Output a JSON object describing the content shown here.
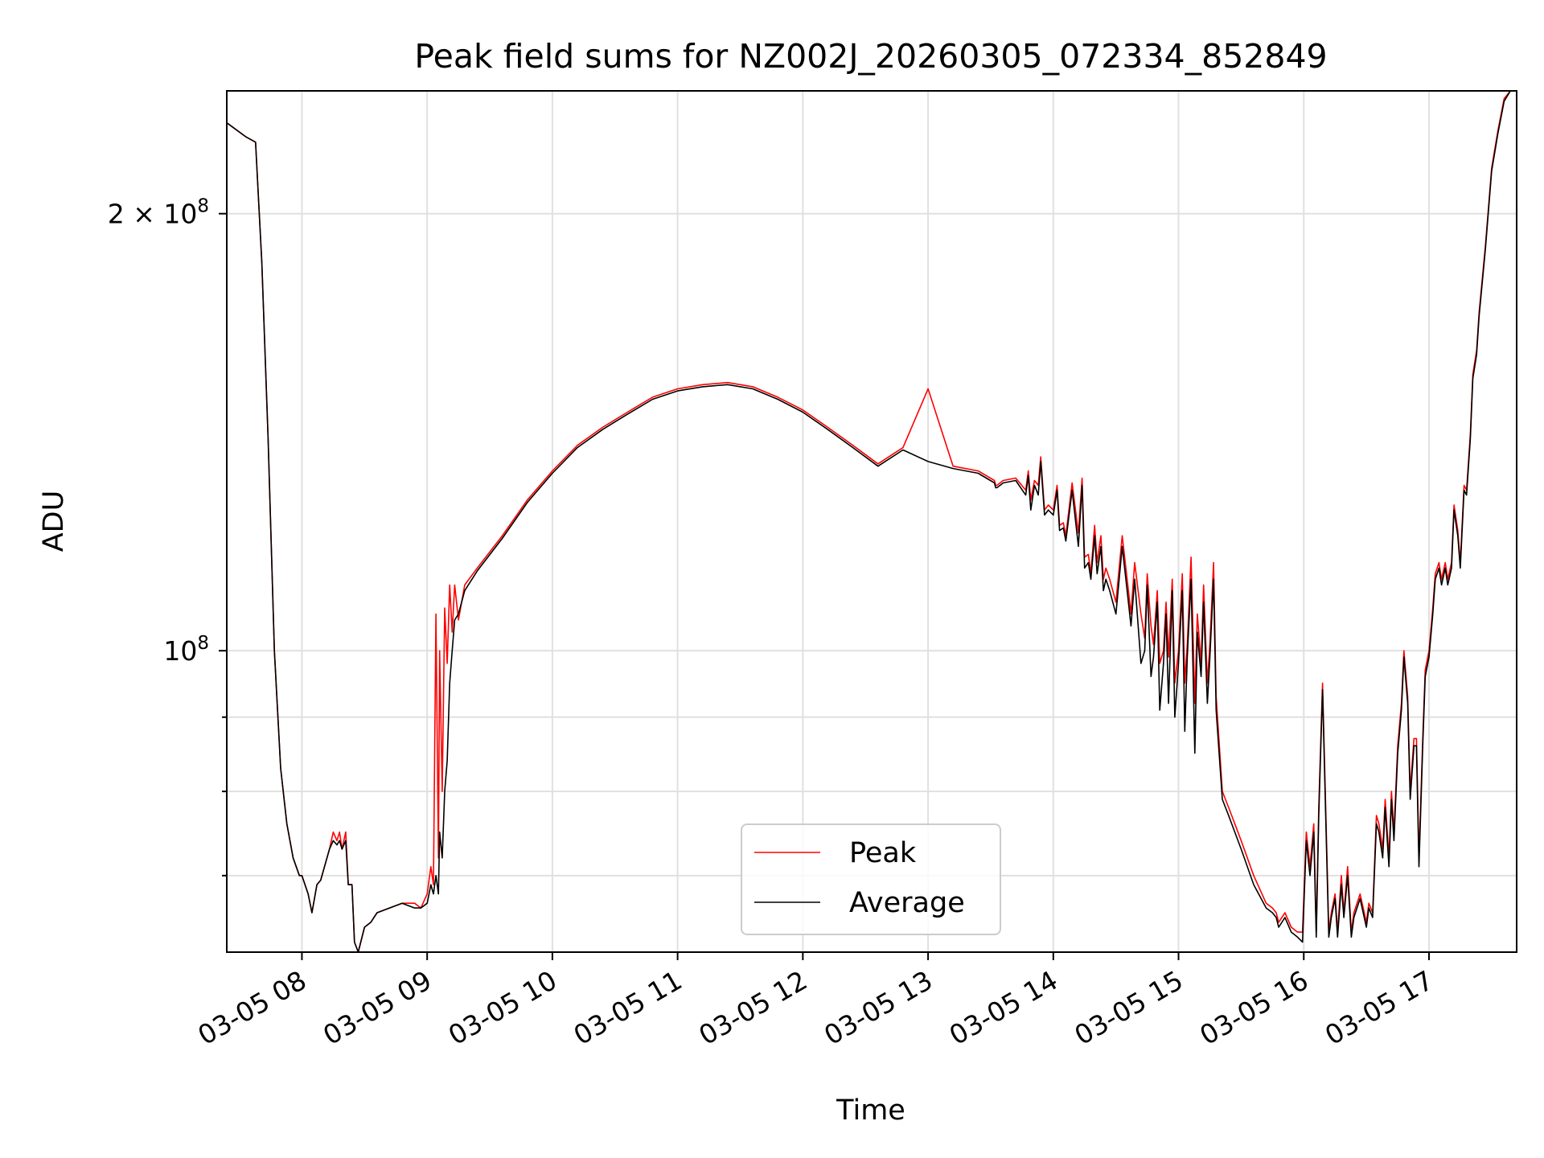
{
  "chart_data": {
    "type": "line",
    "title": "Peak field sums for NZ002J_20260305_072334_852849",
    "xlabel": "Time",
    "ylabel": "ADU",
    "yscale": "log",
    "grid": true,
    "legend_position": "lower-center",
    "x_unit": "hours since 03-05 00:00",
    "xlim": [
      7.4,
      17.7
    ],
    "ylim": [
      62000000,
      243000000
    ],
    "x_ticks": [
      {
        "value": 8,
        "label": "03-05 08"
      },
      {
        "value": 9,
        "label": "03-05 09"
      },
      {
        "value": 10,
        "label": "03-05 10"
      },
      {
        "value": 11,
        "label": "03-05 11"
      },
      {
        "value": 12,
        "label": "03-05 12"
      },
      {
        "value": 13,
        "label": "03-05 13"
      },
      {
        "value": 14,
        "label": "03-05 14"
      },
      {
        "value": 15,
        "label": "03-05 15"
      },
      {
        "value": 16,
        "label": "03-05 16"
      },
      {
        "value": 17,
        "label": "03-05 17"
      }
    ],
    "y_major_ticks": [
      {
        "value": 100000000,
        "base": "10",
        "exp": "8",
        "mant": ""
      },
      {
        "value": 200000000,
        "base": "10",
        "exp": "8",
        "mant": "2 × "
      }
    ],
    "y_minor_ticks": [
      70000000,
      80000000,
      90000000
    ],
    "series": [
      {
        "name": "Peak",
        "color": "#ff0000",
        "x": [
          7.4,
          7.55,
          7.63,
          7.68,
          7.73,
          7.78,
          7.83,
          7.88,
          7.93,
          7.98,
          8.0,
          8.05,
          8.08,
          8.12,
          8.15,
          8.2,
          8.22,
          8.25,
          8.28,
          8.3,
          8.32,
          8.35,
          8.37,
          8.4,
          8.42,
          8.45,
          8.47,
          8.5,
          8.55,
          8.6,
          8.7,
          8.8,
          8.9,
          8.95,
          9.0,
          9.03,
          9.05,
          9.07,
          9.09,
          9.1,
          9.12,
          9.14,
          9.16,
          9.18,
          9.2,
          9.22,
          9.25,
          9.3,
          9.4,
          9.6,
          9.8,
          10.0,
          10.2,
          10.4,
          10.6,
          10.8,
          11.0,
          11.2,
          11.4,
          11.6,
          11.8,
          12.0,
          12.2,
          12.4,
          12.6,
          12.8,
          13.0,
          13.2,
          13.4,
          13.53,
          13.54,
          13.55,
          13.6,
          13.7,
          13.78,
          13.8,
          13.82,
          13.85,
          13.88,
          13.9,
          13.93,
          13.96,
          14.0,
          14.03,
          14.05,
          14.08,
          14.1,
          14.15,
          14.2,
          14.23,
          14.25,
          14.28,
          14.3,
          14.33,
          14.35,
          14.38,
          14.4,
          14.42,
          14.45,
          14.5,
          14.55,
          14.6,
          14.62,
          14.65,
          14.7,
          14.73,
          14.75,
          14.78,
          14.8,
          14.83,
          14.85,
          14.88,
          14.9,
          14.92,
          14.95,
          14.97,
          15.0,
          15.03,
          15.05,
          15.07,
          15.1,
          15.13,
          15.15,
          15.18,
          15.2,
          15.23,
          15.25,
          15.28,
          15.3,
          15.35,
          15.4,
          15.5,
          15.6,
          15.7,
          15.75,
          15.78,
          15.8,
          15.85,
          15.9,
          15.95,
          15.99,
          16.02,
          16.05,
          16.08,
          16.1,
          16.12,
          16.15,
          16.18,
          16.2,
          16.22,
          16.25,
          16.27,
          16.3,
          16.32,
          16.35,
          16.38,
          16.4,
          16.45,
          16.5,
          16.52,
          16.55,
          16.58,
          16.6,
          16.63,
          16.65,
          16.68,
          16.7,
          16.72,
          16.75,
          16.78,
          16.8,
          16.83,
          16.85,
          16.88,
          16.9,
          16.92,
          16.95,
          16.97,
          17.0,
          17.03,
          17.05,
          17.08,
          17.1,
          17.13,
          17.15,
          17.18,
          17.2,
          17.23,
          17.25,
          17.28,
          17.3,
          17.33,
          17.35,
          17.38,
          17.4,
          17.45,
          17.5,
          17.55,
          17.6,
          17.65,
          17.7
        ],
        "y": [
          231000000,
          226000000,
          224000000,
          185000000,
          140000000,
          100000000,
          83000000,
          76000000,
          72000000,
          70000000,
          70000000,
          68000000,
          66000000,
          69000000,
          69500000,
          72000000,
          73000000,
          75000000,
          74000000,
          75000000,
          73000000,
          75000000,
          69000000,
          69000000,
          63000000,
          62000000,
          63000000,
          64500000,
          65000000,
          66000000,
          66500000,
          67000000,
          67000000,
          66500000,
          68000000,
          71000000,
          69000000,
          106000000,
          72000000,
          100000000,
          80000000,
          107000000,
          98000000,
          111000000,
          103000000,
          111000000,
          105000000,
          111000000,
          114000000,
          120000000,
          127000000,
          133000000,
          138500000,
          142500000,
          146000000,
          149500000,
          151500000,
          152500000,
          153000000,
          152000000,
          149500000,
          146500000,
          142500000,
          138500000,
          134500000,
          138000000,
          151500000,
          134000000,
          133000000,
          131000000,
          130000000,
          130000000,
          131000000,
          131500000,
          129000000,
          133000000,
          127000000,
          131000000,
          130000000,
          136000000,
          125000000,
          126000000,
          125000000,
          130000000,
          122000000,
          122500000,
          120000000,
          130500000,
          120500000,
          131500000,
          116000000,
          116500000,
          113000000,
          122000000,
          115000000,
          120000000,
          112000000,
          114000000,
          112000000,
          108000000,
          120000000,
          110000000,
          106000000,
          115000000,
          106000000,
          102000000,
          113000000,
          104000000,
          101000000,
          110000000,
          98000000,
          100000000,
          108000000,
          99000000,
          112000000,
          95000000,
          100000000,
          113000000,
          95000000,
          101000000,
          116000000,
          92000000,
          106000000,
          98000000,
          111000000,
          95000000,
          101000000,
          115000000,
          93000000,
          80000000,
          78000000,
          74000000,
          70000000,
          67000000,
          66500000,
          66000000,
          65000000,
          66000000,
          64500000,
          64000000,
          64000000,
          75000000,
          71000000,
          76000000,
          64000000,
          78000000,
          95000000,
          75000000,
          64000000,
          66000000,
          68000000,
          64000000,
          70000000,
          66000000,
          71000000,
          64000000,
          66000000,
          68000000,
          65000000,
          67000000,
          66000000,
          77000000,
          76000000,
          73000000,
          79000000,
          72000000,
          80000000,
          75000000,
          86000000,
          92000000,
          100000000,
          93000000,
          80000000,
          87000000,
          87000000,
          72000000,
          87000000,
          97000000,
          100000000,
          107000000,
          113000000,
          115000000,
          112000000,
          115000000,
          112000000,
          115000000,
          126000000,
          121000000,
          115000000,
          130000000,
          129000000,
          141000000,
          155000000,
          161000000,
          171000000,
          190000000,
          215000000,
          228000000,
          240000000,
          243000000,
          243000000
        ]
      },
      {
        "name": "Average",
        "color": "#000000",
        "x": [
          7.4,
          7.55,
          7.63,
          7.68,
          7.73,
          7.78,
          7.83,
          7.88,
          7.93,
          7.98,
          8.0,
          8.05,
          8.08,
          8.12,
          8.15,
          8.2,
          8.22,
          8.25,
          8.28,
          8.3,
          8.32,
          8.35,
          8.37,
          8.4,
          8.42,
          8.45,
          8.47,
          8.5,
          8.55,
          8.6,
          8.7,
          8.8,
          8.9,
          8.95,
          9.0,
          9.03,
          9.05,
          9.07,
          9.09,
          9.1,
          9.12,
          9.14,
          9.16,
          9.18,
          9.2,
          9.22,
          9.25,
          9.3,
          9.4,
          9.6,
          9.8,
          10.0,
          10.2,
          10.4,
          10.6,
          10.8,
          11.0,
          11.2,
          11.4,
          11.6,
          11.8,
          12.0,
          12.2,
          12.4,
          12.6,
          12.8,
          13.0,
          13.2,
          13.4,
          13.53,
          13.54,
          13.55,
          13.6,
          13.7,
          13.78,
          13.8,
          13.82,
          13.85,
          13.88,
          13.9,
          13.93,
          13.96,
          14.0,
          14.03,
          14.05,
          14.08,
          14.1,
          14.15,
          14.2,
          14.23,
          14.25,
          14.28,
          14.3,
          14.33,
          14.35,
          14.38,
          14.4,
          14.42,
          14.45,
          14.5,
          14.55,
          14.6,
          14.62,
          14.65,
          14.7,
          14.73,
          14.75,
          14.78,
          14.8,
          14.83,
          14.85,
          14.88,
          14.9,
          14.92,
          14.95,
          14.97,
          15.0,
          15.03,
          15.05,
          15.07,
          15.1,
          15.13,
          15.15,
          15.18,
          15.2,
          15.23,
          15.25,
          15.28,
          15.3,
          15.35,
          15.4,
          15.5,
          15.6,
          15.7,
          15.75,
          15.78,
          15.8,
          15.85,
          15.9,
          15.95,
          15.99,
          16.02,
          16.05,
          16.08,
          16.1,
          16.12,
          16.15,
          16.18,
          16.2,
          16.22,
          16.25,
          16.27,
          16.3,
          16.32,
          16.35,
          16.38,
          16.4,
          16.45,
          16.5,
          16.52,
          16.55,
          16.58,
          16.6,
          16.63,
          16.65,
          16.68,
          16.7,
          16.72,
          16.75,
          16.78,
          16.8,
          16.83,
          16.85,
          16.88,
          16.9,
          16.92,
          16.95,
          16.97,
          17.0,
          17.03,
          17.05,
          17.08,
          17.1,
          17.13,
          17.15,
          17.18,
          17.2,
          17.23,
          17.25,
          17.28,
          17.3,
          17.33,
          17.35,
          17.38,
          17.4,
          17.45,
          17.5,
          17.55,
          17.6,
          17.65,
          17.7
        ],
        "y": [
          231000000,
          226000000,
          224000000,
          185000000,
          140000000,
          100000000,
          83000000,
          76000000,
          72000000,
          70000000,
          70000000,
          68000000,
          66000000,
          69000000,
          69500000,
          72000000,
          73000000,
          74000000,
          73500000,
          74000000,
          73000000,
          74000000,
          69000000,
          69000000,
          63000000,
          62000000,
          63000000,
          64500000,
          65000000,
          66000000,
          66500000,
          67000000,
          66500000,
          66500000,
          67000000,
          69000000,
          68000000,
          70000000,
          68000000,
          75000000,
          72000000,
          80000000,
          84000000,
          95000000,
          100000000,
          105000000,
          106000000,
          110000000,
          113500000,
          119500000,
          126500000,
          132500000,
          138000000,
          142000000,
          145500000,
          149000000,
          151000000,
          152000000,
          152500000,
          151500000,
          149000000,
          146000000,
          142000000,
          138000000,
          134000000,
          137500000,
          135000000,
          133500000,
          132500000,
          130500000,
          129500000,
          129500000,
          130500000,
          131000000,
          128000000,
          132000000,
          125000000,
          130000000,
          128000000,
          135000000,
          124000000,
          125000000,
          124000000,
          129000000,
          121000000,
          121500000,
          119000000,
          129000000,
          118000000,
          130000000,
          114000000,
          115000000,
          112000000,
          120000000,
          113000000,
          118000000,
          110000000,
          112000000,
          110000000,
          106000000,
          118000000,
          108000000,
          104000000,
          112000000,
          98000000,
          100000000,
          111000000,
          96000000,
          99000000,
          108000000,
          91000000,
          98000000,
          106000000,
          92000000,
          110000000,
          90000000,
          98000000,
          110000000,
          88000000,
          99000000,
          112000000,
          85000000,
          103000000,
          96000000,
          108000000,
          92000000,
          99000000,
          112000000,
          91000000,
          79000000,
          77000000,
          73000000,
          69000000,
          66500000,
          66000000,
          65500000,
          64500000,
          65500000,
          64000000,
          63500000,
          63000000,
          74000000,
          70000000,
          75000000,
          63500000,
          77000000,
          94000000,
          74000000,
          63500000,
          65500000,
          67500000,
          63500000,
          69000000,
          65500000,
          70000000,
          63500000,
          65500000,
          67500000,
          64500000,
          66500000,
          65500000,
          76000000,
          75000000,
          72000000,
          78000000,
          71000000,
          79000000,
          74000000,
          85000000,
          91000000,
          99000000,
          92000000,
          79000000,
          86000000,
          86000000,
          71000000,
          86000000,
          96000000,
          99000000,
          106000000,
          112000000,
          114000000,
          111000000,
          114000000,
          111000000,
          114000000,
          125000000,
          120000000,
          114000000,
          129000000,
          128000000,
          140000000,
          154000000,
          160000000,
          170000000,
          189000000,
          214000000,
          227000000,
          239000000,
          243000000,
          243000000
        ]
      }
    ]
  }
}
